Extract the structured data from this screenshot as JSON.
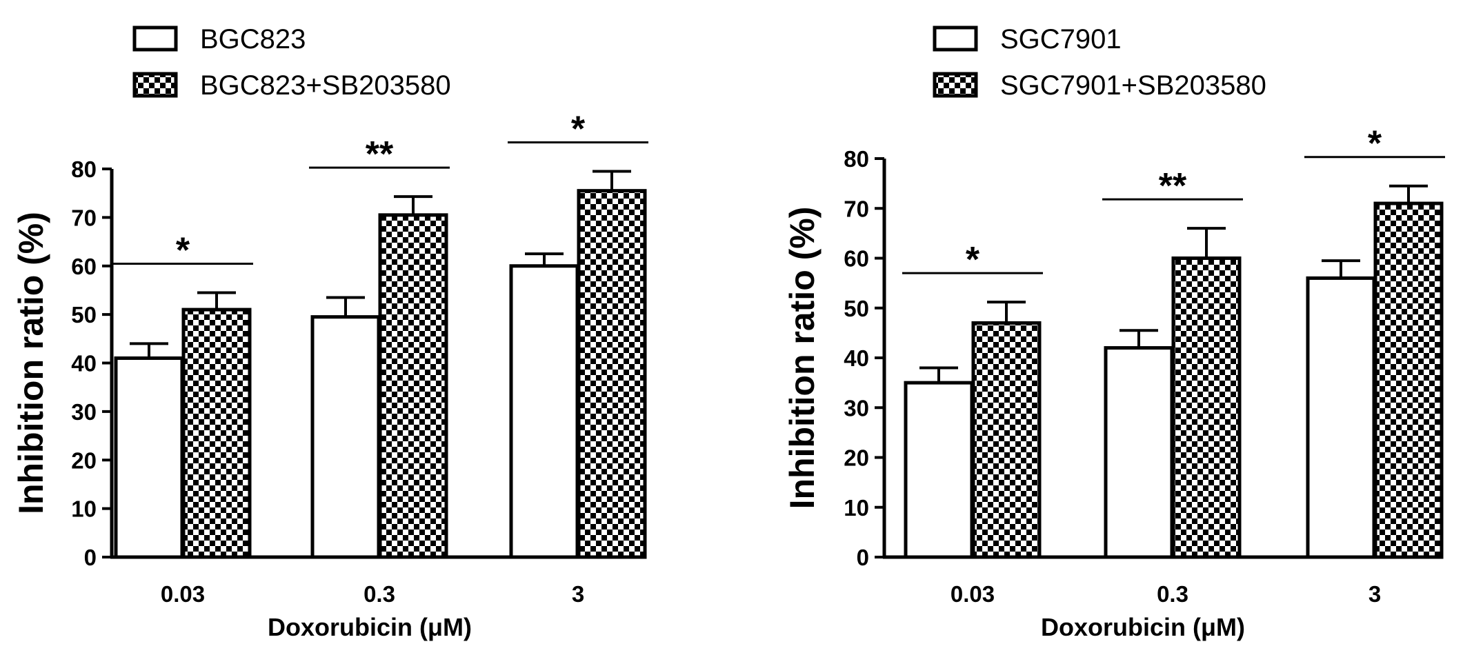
{
  "chart_data": [
    {
      "type": "bar",
      "title": "",
      "xlabel": "Doxorubicin (μM)",
      "ylabel": "Inhibition ratio (%)",
      "ylim": [
        0,
        80
      ],
      "yticks": [
        "0",
        "10",
        "20",
        "30",
        "40",
        "50",
        "60",
        "70",
        "80"
      ],
      "categories": [
        "0.03",
        "0.3",
        "3"
      ],
      "legend_position": "top-left, above plot",
      "series": [
        {
          "name": "BGC823",
          "fill": "white",
          "values": [
            41,
            49.5,
            60
          ],
          "errors": [
            3,
            4,
            2.5
          ]
        },
        {
          "name": "BGC823+SB203580",
          "fill": "checkered",
          "values": [
            51,
            70.5,
            75.5
          ],
          "errors": [
            3.5,
            3.8,
            4
          ]
        }
      ],
      "significance": [
        "*",
        "**",
        "*"
      ]
    },
    {
      "type": "bar",
      "title": "",
      "xlabel": "Doxorubicin (μM)",
      "ylabel": "Inhibition ratio (%)",
      "ylim": [
        0,
        80
      ],
      "yticks": [
        "0",
        "10",
        "20",
        "30",
        "40",
        "50",
        "60",
        "70",
        "80"
      ],
      "categories": [
        "0.03",
        "0.3",
        "3"
      ],
      "legend_position": "top-left, above plot",
      "series": [
        {
          "name": "SGC7901",
          "fill": "white",
          "values": [
            35,
            42,
            56
          ],
          "errors": [
            3,
            3.5,
            3.5
          ]
        },
        {
          "name": "SGC7901+SB203580",
          "fill": "checkered",
          "values": [
            47,
            60,
            71
          ],
          "errors": [
            4.2,
            6,
            3.5
          ]
        }
      ],
      "significance": [
        "*",
        "**",
        "*"
      ]
    }
  ],
  "colors": {
    "bar_outline": "#000000",
    "checker_dark": "#000000",
    "checker_light": "#ffffff",
    "background": "#ffffff"
  }
}
